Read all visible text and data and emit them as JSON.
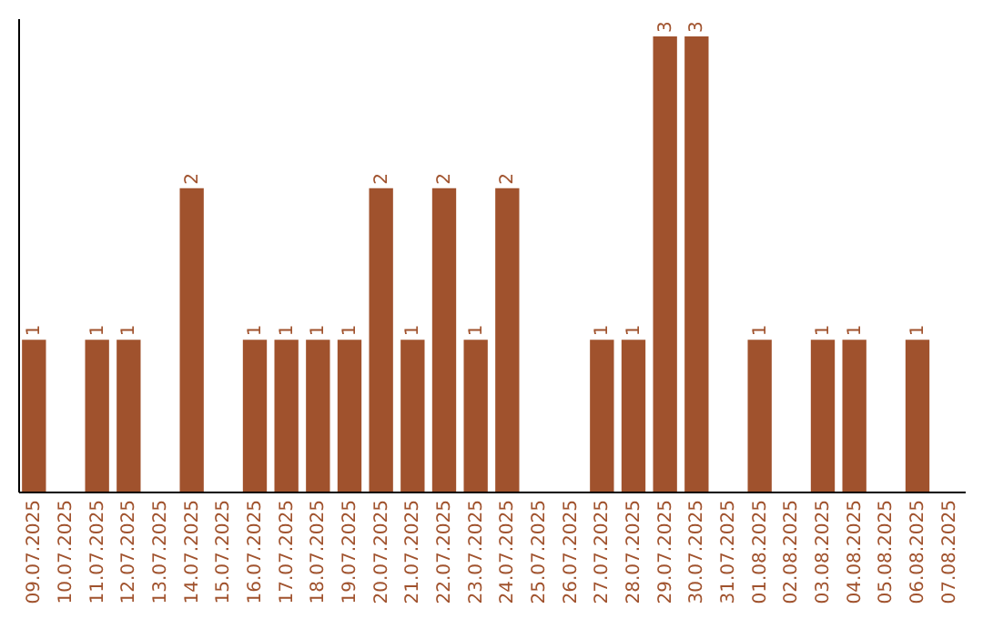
{
  "chart_data": {
    "type": "bar",
    "categories": [
      "09.07.2025",
      "10.07.2025",
      "11.07.2025",
      "12.07.2025",
      "13.07.2025",
      "14.07.2025",
      "15.07.2025",
      "16.07.2025",
      "17.07.2025",
      "18.07.2025",
      "19.07.2025",
      "20.07.2025",
      "21.07.2025",
      "22.07.2025",
      "23.07.2025",
      "24.07.2025",
      "25.07.2025",
      "26.07.2025",
      "27.07.2025",
      "28.07.2025",
      "29.07.2025",
      "30.07.2025",
      "31.07.2025",
      "01.08.2025",
      "02.08.2025",
      "03.08.2025",
      "04.08.2025",
      "05.08.2025",
      "06.08.2025",
      "07.08.2025"
    ],
    "values": [
      1,
      0,
      1,
      1,
      0,
      2,
      0,
      1,
      1,
      1,
      1,
      2,
      1,
      2,
      1,
      2,
      0,
      0,
      1,
      1,
      3,
      3,
      0,
      1,
      0,
      1,
      1,
      0,
      1,
      0
    ],
    "value_labels": [
      "1",
      null,
      "1",
      "1",
      null,
      "2",
      null,
      "1",
      "1",
      "1",
      "1",
      "2",
      "1",
      "2",
      "1",
      "2",
      null,
      null,
      "1",
      "1",
      "3",
      "3",
      null,
      "1",
      null,
      "1",
      "1",
      null,
      "1",
      null
    ],
    "color": "#a0522d",
    "tick_labels": "x",
    "grid": false
  }
}
